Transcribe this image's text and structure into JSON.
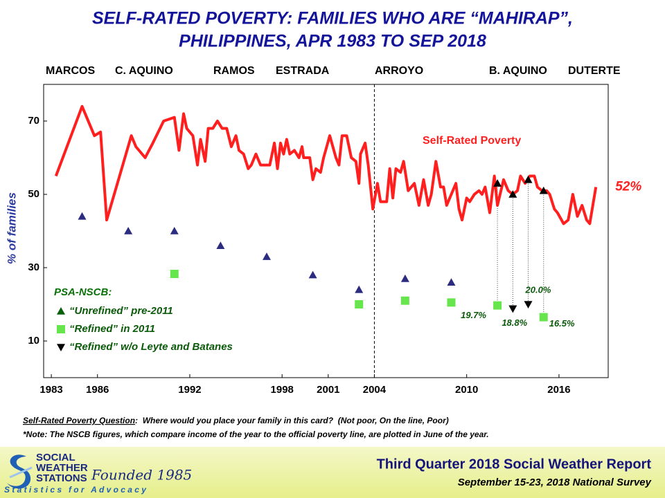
{
  "chart_data": {
    "type": "line",
    "title": [
      "SELF-RATED POVERTY: FAMILIES WHO ARE “MAHIRAP”,",
      "PHILIPPINES, APR 1983 TO SEP 2018"
    ],
    "eras": [
      "MARCOS",
      "C. AQUINO",
      "RAMOS",
      "ESTRADA",
      "ARROYO",
      "B. AQUINO",
      "DUTERTE"
    ],
    "y_label": "% of families",
    "xlim": [
      1982.5,
      2019.2
    ],
    "xticks": [
      1983,
      1986,
      1992,
      1998,
      2001,
      2004,
      2010,
      2016
    ],
    "ylim": [
      0,
      80
    ],
    "yticks": [
      10,
      30,
      50,
      70
    ],
    "vlines": [
      2004
    ],
    "legend_title": "PSA-NSCB:",
    "series": [
      {
        "name": "Self-Rated Poverty",
        "color": "#ff1f1f",
        "x": [
          1983.3,
          1985.0,
          1985.8,
          1986.2,
          1986.6,
          1988.2,
          1988.5,
          1989.1,
          1989.6,
          1990.3,
          1991.0,
          1991.3,
          1991.6,
          1991.8,
          1992.2,
          1992.5,
          1992.7,
          1993.0,
          1993.2,
          1993.5,
          1993.8,
          1994.1,
          1994.4,
          1994.7,
          1995.0,
          1995.2,
          1995.5,
          1995.8,
          1996.0,
          1996.3,
          1996.6,
          1997.2,
          1997.5,
          1997.7,
          1997.9,
          1998.1,
          1998.3,
          1998.5,
          1998.8,
          1999.1,
          1999.3,
          1999.4,
          1999.8,
          2000.0,
          2000.2,
          2000.5,
          2000.7,
          2001.1,
          2001.5,
          2001.7,
          2001.9,
          2002.2,
          2002.5,
          2002.8,
          2003.0,
          2003.1,
          2003.4,
          2003.6,
          2003.9,
          2004.2,
          2004.4,
          2004.8,
          2005.0,
          2005.2,
          2005.4,
          2005.7,
          2005.9,
          2006.2,
          2006.6,
          2006.9,
          2007.2,
          2007.5,
          2007.7,
          2008.0,
          2008.3,
          2008.5,
          2008.7,
          2009.0,
          2009.3,
          2009.5,
          2009.7,
          2010.0,
          2010.2,
          2010.5,
          2010.8,
          2011.0,
          2011.2,
          2011.5,
          2011.8,
          2012.0,
          2012.4,
          2012.7,
          2013.0,
          2013.3,
          2013.5,
          2013.8,
          2014.1,
          2014.4,
          2014.6,
          2014.9,
          2015.2,
          2015.4,
          2015.7,
          2015.9,
          2016.3,
          2016.6,
          2016.9,
          2017.2,
          2017.5,
          2017.8,
          2018.0,
          2018.4
        ],
        "values": [
          55,
          74,
          66,
          67,
          43,
          66,
          63,
          60,
          64,
          70,
          71,
          62,
          72,
          68,
          66,
          58,
          65,
          59,
          68,
          68,
          70,
          68,
          68,
          63,
          66,
          62,
          61,
          57,
          58,
          61,
          58,
          58,
          64,
          57,
          64,
          61,
          65,
          61,
          62,
          60,
          63,
          60,
          60,
          54,
          57,
          56,
          60,
          66,
          60,
          58,
          66,
          66,
          60,
          59,
          53,
          61,
          64,
          58,
          46,
          53,
          48,
          48,
          57,
          49,
          57,
          56,
          59,
          51,
          53,
          47,
          54,
          47,
          50,
          59,
          52,
          52,
          47,
          50,
          53,
          46,
          43,
          49,
          48,
          50,
          51,
          50,
          52,
          45,
          55,
          47,
          54,
          51,
          50,
          51,
          55,
          53,
          55,
          55,
          52,
          51,
          51,
          50,
          46,
          45,
          42,
          43,
          50,
          44,
          47,
          43,
          42,
          52
        ],
        "value_labels": [
          null,
          null,
          null,
          null,
          null,
          null,
          null,
          null,
          null,
          null,
          null,
          null,
          null,
          null,
          null,
          null,
          null,
          null,
          null,
          null,
          null,
          null,
          null,
          null,
          null,
          null,
          null,
          null,
          null,
          null,
          null,
          null,
          null,
          null,
          null,
          null,
          null,
          null,
          null,
          null,
          null,
          null,
          null,
          null,
          null,
          null,
          null,
          null,
          null,
          null,
          null,
          null,
          null,
          null,
          null,
          null,
          null,
          null,
          null,
          null,
          null,
          null,
          null,
          null,
          null,
          null,
          null,
          null,
          null,
          null,
          null,
          null,
          null,
          null,
          null,
          null,
          null,
          null,
          null,
          null,
          null,
          null,
          null,
          null,
          null,
          null,
          null,
          null,
          null,
          null,
          null,
          null,
          null,
          null,
          null,
          null,
          null,
          null,
          null,
          null,
          null,
          null,
          null,
          null,
          null,
          null,
          null,
          null,
          null,
          null,
          null,
          "52%"
        ]
      },
      {
        "name": "“Unrefined” pre-2011",
        "type": "scatter",
        "marker": "triangle-up",
        "color": "#2b2b80",
        "x": [
          1985,
          1988,
          1991,
          1994,
          1997,
          2000,
          2003,
          2006,
          2009
        ],
        "values": [
          44,
          40,
          40,
          36,
          33,
          28,
          24,
          27,
          26
        ]
      },
      {
        "name": "“Refined” in 2011",
        "type": "scatter",
        "marker": "square",
        "color": "#66e64c",
        "x": [
          1991,
          2003,
          2006,
          2009,
          2012,
          2015
        ],
        "values": [
          28.3,
          20,
          21,
          20.5,
          19.7,
          16.5
        ],
        "value_labels": [
          null,
          null,
          null,
          null,
          "19.7%",
          "16.5%"
        ]
      },
      {
        "name": "“Refined” w/o Leyte and Batanes",
        "type": "scatter",
        "marker": "triangle-down",
        "color": "#000000",
        "x": [
          2013,
          2014
        ],
        "values": [
          18.8,
          20.0
        ],
        "value_labels": [
          "18.8%",
          "20.0%"
        ]
      }
    ],
    "line_markers": {
      "marker": "triangle-up",
      "color": "#000000",
      "x": [
        2012,
        2013,
        2014,
        2015
      ],
      "values": [
        53,
        50,
        54,
        51
      ]
    }
  },
  "footnotes": {
    "question_label": "Self-Rated Poverty Question",
    "question": ":  Where would you place your family in this card?  (Not poor, On the line, Poor)",
    "note": "*Note: The NSCB figures, which compare income of the year to the official poverty line, are plotted in June of the year."
  },
  "footer": {
    "org": [
      "SOCIAL",
      "WEATHER",
      "STATIONS"
    ],
    "founded": "Founded 1985",
    "motto": "Statistics for Advocacy",
    "report": "Third Quarter 2018 Social Weather Report",
    "survey": "September 15-23, 2018 National Survey"
  }
}
